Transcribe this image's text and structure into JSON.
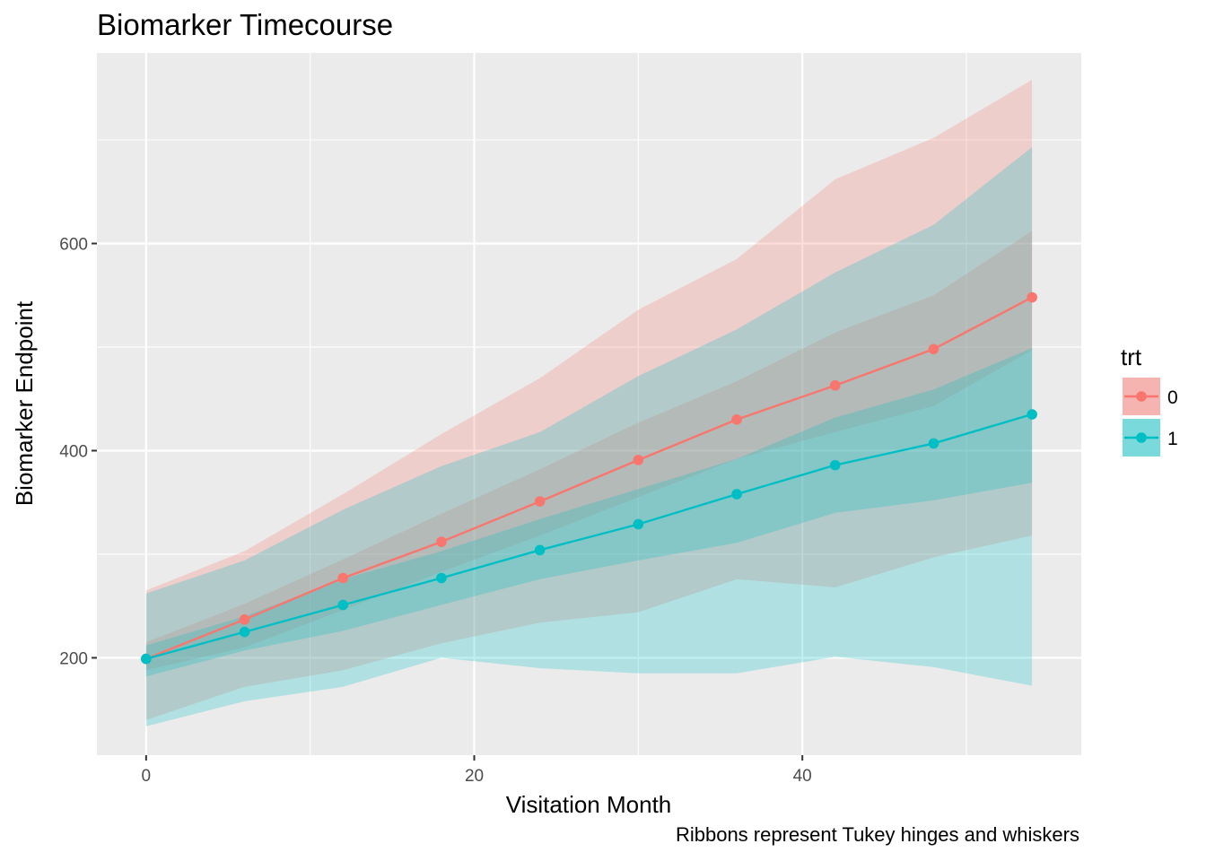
{
  "chart_data": {
    "type": "line",
    "title": "Biomarker Timecourse",
    "xlabel": "Visitation Month",
    "ylabel": "Biomarker Endpoint",
    "caption": "Ribbons represent Tukey hinges and whiskers",
    "xlim": [
      -3,
      57
    ],
    "ylim": [
      106,
      784
    ],
    "x_ticks": [
      0,
      20,
      40
    ],
    "y_ticks": [
      200,
      400,
      600
    ],
    "x": [
      0,
      6,
      12,
      18,
      24,
      30,
      36,
      42,
      48,
      54
    ],
    "grid": true,
    "legend": {
      "title": "trt",
      "position": "right"
    },
    "series": [
      {
        "name": "0",
        "color": "#F8766D",
        "values": [
          199,
          237,
          277,
          312,
          351,
          391,
          430,
          463,
          498,
          548
        ],
        "hinge_lower": [
          188,
          210,
          246,
          283,
          318,
          355,
          392,
          418,
          443,
          497
        ],
        "hinge_upper": [
          215,
          252,
          295,
          339,
          382,
          427,
          467,
          514,
          550,
          612
        ],
        "whisker_lower": [
          140,
          172,
          188,
          214,
          234,
          244,
          276,
          268,
          297,
          318
        ],
        "whisker_upper": [
          265,
          303,
          358,
          416,
          470,
          536,
          585,
          662,
          702,
          758
        ]
      },
      {
        "name": "1",
        "color": "#00BFC4",
        "values": [
          199,
          225,
          251,
          277,
          304,
          329,
          358,
          386,
          407,
          435
        ],
        "hinge_lower": [
          182,
          207,
          226,
          251,
          276,
          294,
          311,
          340,
          352,
          369
        ],
        "hinge_upper": [
          212,
          240,
          276,
          303,
          334,
          363,
          392,
          432,
          459,
          499
        ],
        "whisker_lower": [
          134,
          158,
          172,
          200,
          190,
          185,
          185,
          201,
          191,
          173
        ],
        "whisker_upper": [
          262,
          294,
          343,
          385,
          418,
          472,
          517,
          572,
          618,
          693
        ]
      }
    ]
  }
}
